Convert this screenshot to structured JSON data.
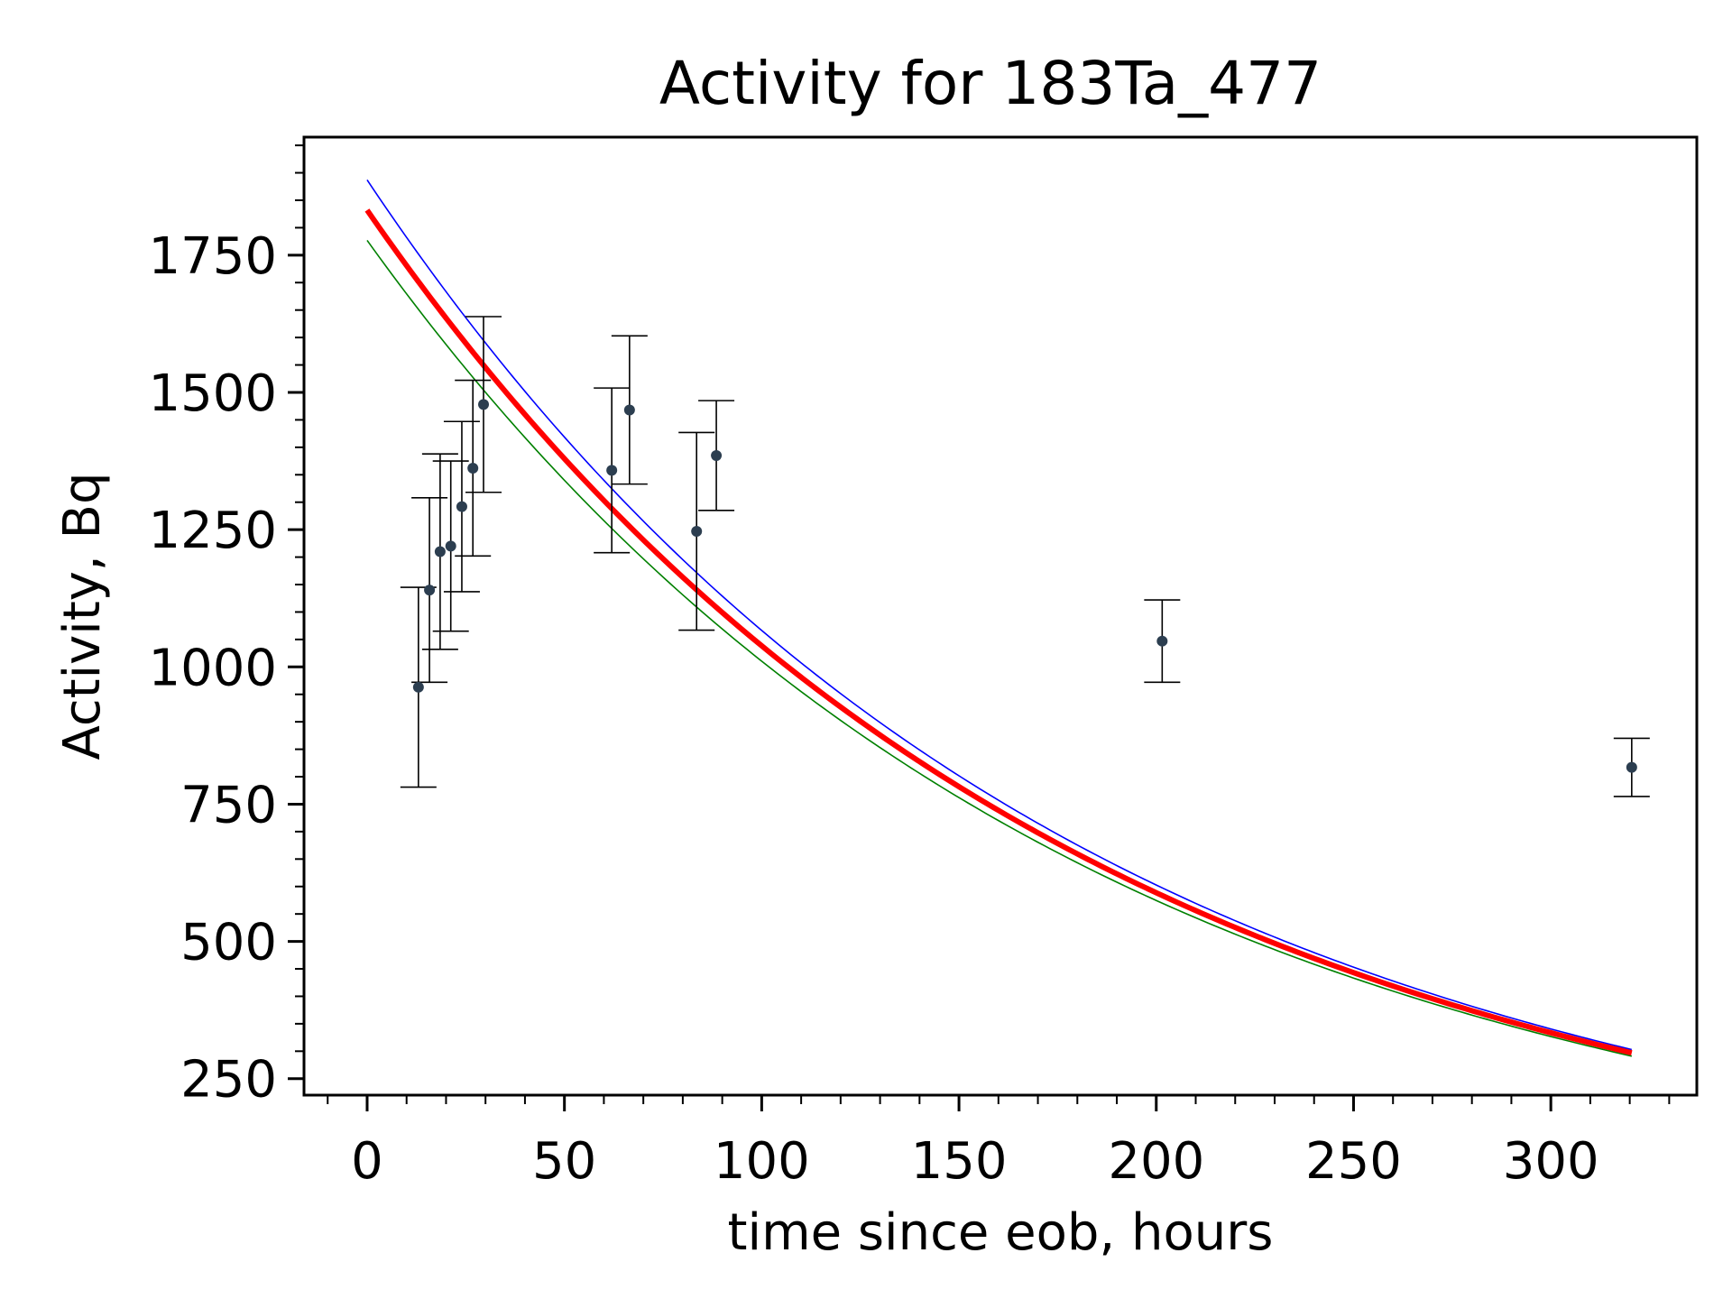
{
  "chart_data": {
    "type": "scatter",
    "title": "Activity for 183Ta_477",
    "xlabel": "time since eob, hours",
    "ylabel": "Activity, Bq",
    "xlim": [
      -16,
      337
    ],
    "ylim": [
      220,
      1965
    ],
    "xticks": [
      0,
      50,
      100,
      150,
      200,
      250,
      300
    ],
    "yticks": [
      250,
      500,
      750,
      1000,
      1250,
      1500,
      1750
    ],
    "x_minor_step": 10,
    "y_minor_step": 50,
    "grid": false,
    "colors": {
      "points": "#2c3e50",
      "errorbars": "#000000",
      "fit": "#ff0000",
      "upper": "#0000ff",
      "lower": "#008000"
    },
    "points": [
      {
        "x": 13.0,
        "y": 963,
        "err": 182
      },
      {
        "x": 15.8,
        "y": 1140,
        "err": 168
      },
      {
        "x": 18.5,
        "y": 1210,
        "err": 178
      },
      {
        "x": 21.2,
        "y": 1220,
        "err": 155
      },
      {
        "x": 24.0,
        "y": 1292,
        "err": 155
      },
      {
        "x": 26.8,
        "y": 1362,
        "err": 160
      },
      {
        "x": 29.5,
        "y": 1478,
        "err": 160
      },
      {
        "x": 62.0,
        "y": 1358,
        "err": 150
      },
      {
        "x": 66.5,
        "y": 1468,
        "err": 135
      },
      {
        "x": 83.5,
        "y": 1247,
        "err": 180
      },
      {
        "x": 88.5,
        "y": 1385,
        "err": 100
      },
      {
        "x": 201.5,
        "y": 1047,
        "err": 75
      },
      {
        "x": 320.5,
        "y": 817,
        "err": 53
      }
    ],
    "fit": {
      "name": "fit",
      "x_range": [
        0,
        320.5
      ],
      "lines": [
        {
          "role": "upper",
          "a0": 1887,
          "a_end": 303
        },
        {
          "role": "lower",
          "a0": 1777,
          "a_end": 291
        },
        {
          "role": "fit",
          "a0": 1832,
          "a_end": 297
        }
      ]
    }
  }
}
